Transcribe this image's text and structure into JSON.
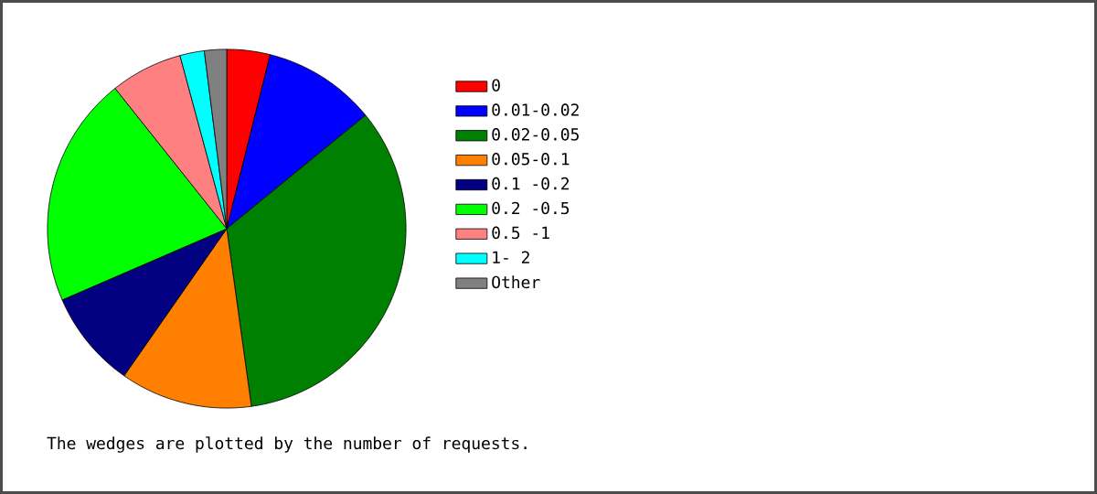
{
  "chart_data": {
    "type": "pie",
    "categories": [
      "0",
      "0.01-0.02",
      "0.02-0.05",
      "0.05-0.1",
      "0.1 -0.2",
      "0.2 -0.5",
      "0.5 -1",
      "1-  2",
      "Other"
    ],
    "values": [
      3.9,
      10.2,
      33.7,
      11.9,
      8.8,
      20.8,
      6.5,
      2.2,
      2.0
    ],
    "colors": [
      "#ff0000",
      "#0000ff",
      "#008000",
      "#ff8000",
      "#000080",
      "#00ff00",
      "#ff8080",
      "#00ffff",
      "#808080"
    ],
    "legend": "right",
    "annotations": [
      "The wedges are plotted by the number of requests."
    ]
  }
}
